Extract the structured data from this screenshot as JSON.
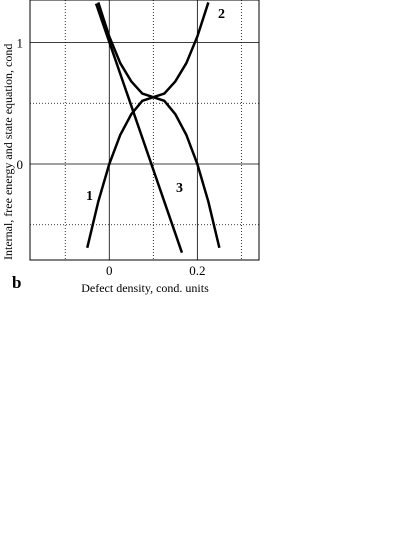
{
  "chart_data": {
    "type": "line",
    "panel_label": "b",
    "x_label": "Defect density, cond. units",
    "y_label": "Internal, free energy and state equation, cond",
    "xlim": [
      -0.18,
      0.34
    ],
    "ylim": [
      -0.79,
      1.35
    ],
    "xticks": [
      0,
      0.2
    ],
    "yticks": [
      0,
      1
    ],
    "minor_x_grid": [
      -0.1,
      0.1,
      0.3
    ],
    "minor_y_grid": [
      -0.5,
      0.5
    ],
    "color": "#000000",
    "series": [
      {
        "name": "1",
        "x": [
          -0.05,
          -0.025,
          0,
          0.025,
          0.05,
          0.075,
          0.1,
          0.125,
          0.15,
          0.175,
          0.2,
          0.225,
          0.25
        ],
        "values": [
          -0.69,
          -0.31,
          0.0,
          0.24,
          0.41,
          0.52,
          0.55,
          0.52,
          0.41,
          0.24,
          0.0,
          -0.31,
          -0.69
        ]
      },
      {
        "name": "2",
        "x": [
          -0.025,
          0,
          0.025,
          0.05,
          0.075,
          0.1,
          0.125,
          0.15,
          0.175,
          0.2,
          0.225
        ],
        "values": [
          1.33,
          1.05,
          0.83,
          0.68,
          0.58,
          0.55,
          0.58,
          0.68,
          0.83,
          1.05,
          1.33
        ]
      },
      {
        "name": "3",
        "x": [
          -0.03,
          0.165
        ],
        "values": [
          1.32,
          -0.73
        ]
      }
    ]
  }
}
